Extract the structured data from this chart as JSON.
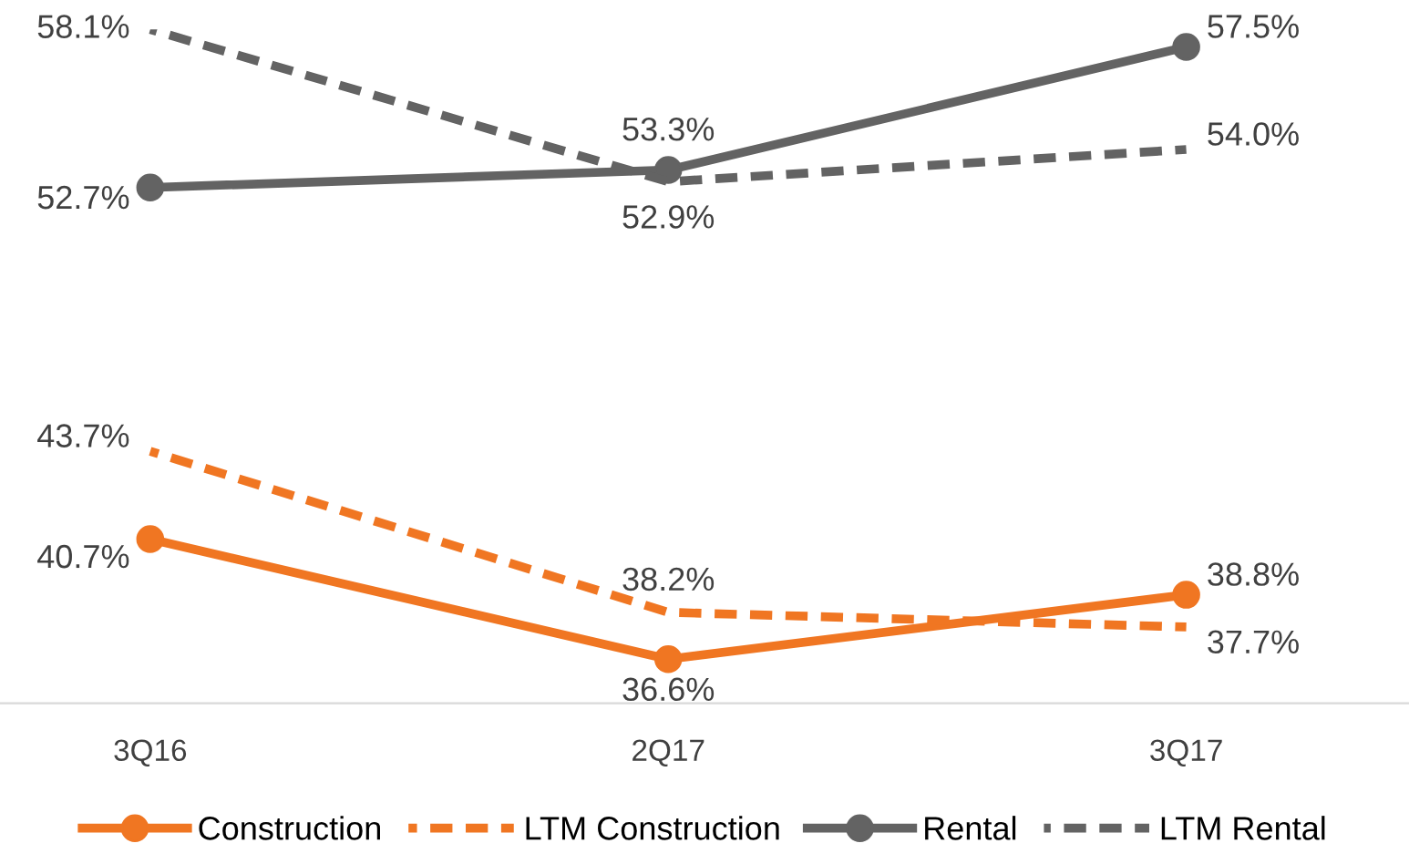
{
  "chart_data": {
    "type": "line",
    "categories": [
      "3Q16",
      "2Q17",
      "3Q17"
    ],
    "series": [
      {
        "name": "Construction",
        "color": "#f07622",
        "values": [
          40.7,
          36.6,
          38.8
        ],
        "value_labels": [
          "40.7%",
          "36.6%",
          "38.8%"
        ],
        "marker": "circle",
        "line_style": "solid"
      },
      {
        "name": "LTM Construction",
        "color": "#f07622",
        "values": [
          43.7,
          38.2,
          37.7
        ],
        "value_labels": [
          "43.7%",
          "38.2%",
          "37.7%"
        ],
        "marker": "none",
        "line_style": "dashed"
      },
      {
        "name": "Rental",
        "color": "#636363",
        "values": [
          52.7,
          53.3,
          57.5
        ],
        "value_labels": [
          "52.7%",
          "53.3%",
          "57.5%"
        ],
        "marker": "circle",
        "line_style": "solid"
      },
      {
        "name": "LTM Rental",
        "color": "#636363",
        "values": [
          58.1,
          52.9,
          54.0
        ],
        "value_labels": [
          "58.1%",
          "52.9%",
          "54.0%"
        ],
        "marker": "none",
        "line_style": "dashed"
      }
    ],
    "grid": false,
    "legend": "bottom"
  }
}
